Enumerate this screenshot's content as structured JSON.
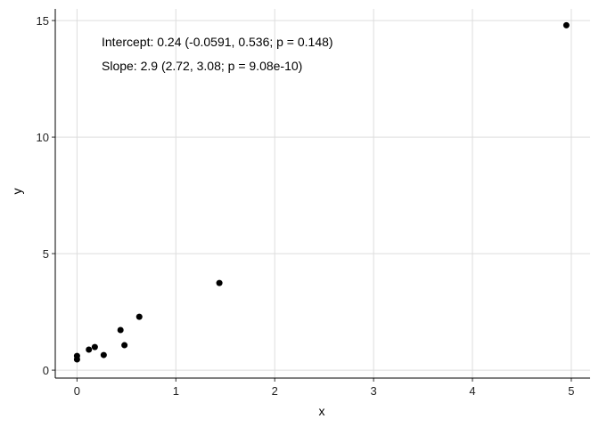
{
  "chart_data": {
    "type": "scatter",
    "x_label": "x",
    "y_label": "y",
    "annotations": [
      "Intercept: 0.24 (-0.0591, 0.536; p = 0.148)",
      "Slope: 2.9 (2.72, 3.08; p = 9.08e-10)"
    ],
    "series": [
      {
        "color": "#000000",
        "x": [
          0,
          0,
          0.12,
          0.18,
          0.27,
          0.44,
          0.48,
          0.63,
          1.44,
          4.95
        ],
        "values": [
          0.46,
          0.61,
          0.88,
          0.99,
          0.65,
          1.72,
          1.07,
          2.29,
          3.74,
          14.8
        ]
      }
    ],
    "xlim": [
      -0.22,
      5.19
    ],
    "xticks": [
      0,
      1,
      2,
      3,
      4,
      5
    ],
    "ylim": [
      -0.34,
      15.5
    ],
    "yticks": [
      0,
      5,
      10,
      15
    ],
    "grid": true
  }
}
